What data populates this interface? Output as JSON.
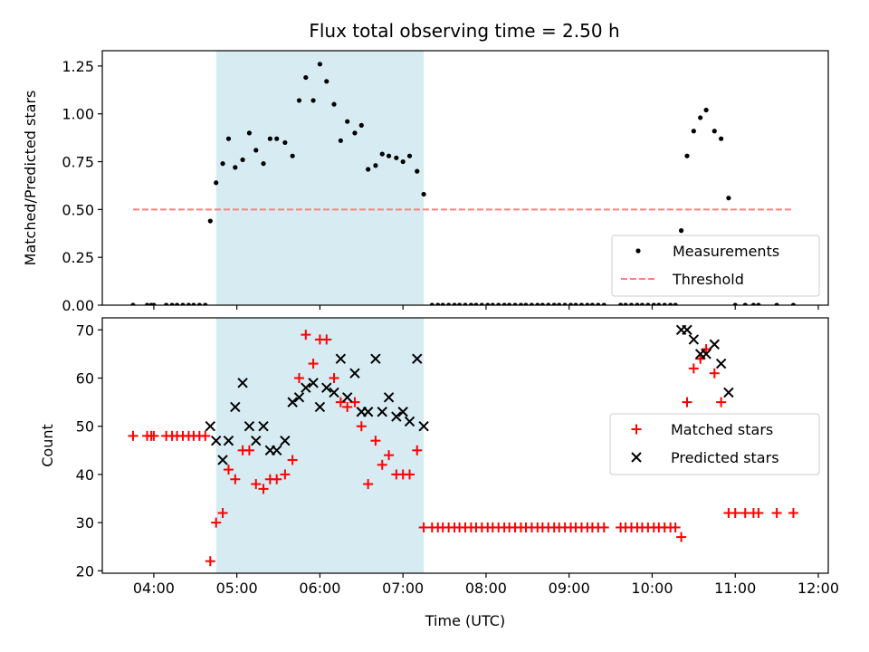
{
  "title": "Flux total observing time = 2.50 h",
  "colors": {
    "measurement": "#000000",
    "threshold": "#ff7f7f",
    "matched": "#ff0000",
    "predicted": "#000000",
    "span_fill": "#add8e6"
  },
  "chart_data": [
    {
      "type": "scatter",
      "title": "Flux total observing time = 2.50 h",
      "xlabel": "",
      "ylabel": "Matched/Predicted stars",
      "x_unit": "hours UTC",
      "xlim": [
        3.38,
        12.12
      ],
      "ylim": [
        0,
        1.33
      ],
      "yticks": [
        0,
        0.25,
        0.5,
        0.75,
        1.0,
        1.25
      ],
      "ytick_labels": [
        "0.00",
        "0.25",
        "0.50",
        "0.75",
        "1.00",
        "1.25"
      ],
      "xticks": [
        4,
        5,
        6,
        7,
        8,
        9,
        10,
        11,
        12
      ],
      "shaded_span": [
        4.75,
        7.25
      ],
      "legend": {
        "placement": "lower-right",
        "entries": [
          "Measurements",
          "Threshold"
        ]
      },
      "threshold": {
        "name": "Threshold",
        "x": [
          3.75,
          11.7
        ],
        "y": 0.5
      },
      "series": [
        {
          "name": "Measurements",
          "marker": "dot",
          "points": [
            [
              3.75,
              0
            ],
            [
              3.92,
              0
            ],
            [
              3.97,
              0
            ],
            [
              4.0,
              0
            ],
            [
              4.15,
              0
            ],
            [
              4.22,
              0
            ],
            [
              4.28,
              0
            ],
            [
              4.35,
              0
            ],
            [
              4.42,
              0
            ],
            [
              4.48,
              0
            ],
            [
              4.55,
              0
            ],
            [
              4.62,
              0
            ],
            [
              4.68,
              0.44
            ],
            [
              4.75,
              0.64
            ],
            [
              4.83,
              0.74
            ],
            [
              4.9,
              0.87
            ],
            [
              4.98,
              0.72
            ],
            [
              5.07,
              0.76
            ],
            [
              5.15,
              0.9
            ],
            [
              5.23,
              0.81
            ],
            [
              5.32,
              0.74
            ],
            [
              5.4,
              0.87
            ],
            [
              5.48,
              0.87
            ],
            [
              5.58,
              0.85
            ],
            [
              5.67,
              0.78
            ],
            [
              5.75,
              1.07
            ],
            [
              5.83,
              1.19
            ],
            [
              5.92,
              1.07
            ],
            [
              6.0,
              1.26
            ],
            [
              6.08,
              1.17
            ],
            [
              6.17,
              1.05
            ],
            [
              6.25,
              0.86
            ],
            [
              6.33,
              0.96
            ],
            [
              6.42,
              0.9
            ],
            [
              6.5,
              0.94
            ],
            [
              6.58,
              0.71
            ],
            [
              6.67,
              0.73
            ],
            [
              6.75,
              0.79
            ],
            [
              6.83,
              0.78
            ],
            [
              6.92,
              0.77
            ],
            [
              7.0,
              0.75
            ],
            [
              7.08,
              0.78
            ],
            [
              7.17,
              0.7
            ],
            [
              7.25,
              0.58
            ],
            [
              7.35,
              0
            ],
            [
              7.42,
              0
            ],
            [
              7.48,
              0
            ],
            [
              7.55,
              0
            ],
            [
              7.62,
              0
            ],
            [
              7.68,
              0
            ],
            [
              7.75,
              0
            ],
            [
              7.82,
              0
            ],
            [
              7.88,
              0
            ],
            [
              7.95,
              0
            ],
            [
              8.02,
              0
            ],
            [
              8.08,
              0
            ],
            [
              8.15,
              0
            ],
            [
              8.22,
              0
            ],
            [
              8.28,
              0
            ],
            [
              8.35,
              0
            ],
            [
              8.42,
              0
            ],
            [
              8.48,
              0
            ],
            [
              8.55,
              0
            ],
            [
              8.62,
              0
            ],
            [
              8.68,
              0
            ],
            [
              8.75,
              0
            ],
            [
              8.82,
              0
            ],
            [
              8.88,
              0
            ],
            [
              8.95,
              0
            ],
            [
              9.02,
              0
            ],
            [
              9.08,
              0
            ],
            [
              9.15,
              0
            ],
            [
              9.22,
              0
            ],
            [
              9.28,
              0
            ],
            [
              9.35,
              0
            ],
            [
              9.42,
              0
            ],
            [
              9.62,
              0
            ],
            [
              9.68,
              0
            ],
            [
              9.75,
              0
            ],
            [
              9.82,
              0
            ],
            [
              9.88,
              0
            ],
            [
              9.95,
              0
            ],
            [
              10.02,
              0
            ],
            [
              10.08,
              0
            ],
            [
              10.15,
              0
            ],
            [
              10.22,
              0
            ],
            [
              10.28,
              0
            ],
            [
              10.35,
              0.39
            ],
            [
              10.42,
              0.78
            ],
            [
              10.5,
              0.91
            ],
            [
              10.58,
              0.98
            ],
            [
              10.65,
              1.02
            ],
            [
              10.75,
              0.91
            ],
            [
              10.83,
              0.87
            ],
            [
              10.92,
              0.56
            ],
            [
              11.0,
              0
            ],
            [
              11.12,
              0
            ],
            [
              11.22,
              0
            ],
            [
              11.28,
              0
            ],
            [
              11.5,
              0
            ],
            [
              11.7,
              0
            ]
          ]
        }
      ]
    },
    {
      "type": "scatter",
      "xlabel": "Time (UTC)",
      "ylabel": "Count",
      "x_unit": "hours UTC",
      "xlim": [
        3.38,
        12.12
      ],
      "ylim": [
        19.5,
        72.5
      ],
      "yticks": [
        20,
        30,
        40,
        50,
        60,
        70
      ],
      "ytick_labels": [
        "20",
        "30",
        "40",
        "50",
        "60",
        "70"
      ],
      "xticks": [
        4,
        5,
        6,
        7,
        8,
        9,
        10,
        11,
        12
      ],
      "xtick_labels": [
        "04:00",
        "05:00",
        "06:00",
        "07:00",
        "08:00",
        "09:00",
        "10:00",
        "11:00",
        "12:00"
      ],
      "shaded_span": [
        4.75,
        7.25
      ],
      "legend": {
        "placement": "center-right",
        "entries": [
          "Matched stars",
          "Predicted stars"
        ]
      },
      "series": [
        {
          "name": "Matched stars",
          "marker": "plus",
          "points": [
            [
              3.75,
              48
            ],
            [
              3.92,
              48
            ],
            [
              3.97,
              48
            ],
            [
              4.0,
              48
            ],
            [
              4.15,
              48
            ],
            [
              4.22,
              48
            ],
            [
              4.28,
              48
            ],
            [
              4.35,
              48
            ],
            [
              4.42,
              48
            ],
            [
              4.48,
              48
            ],
            [
              4.55,
              48
            ],
            [
              4.62,
              48
            ],
            [
              4.68,
              22
            ],
            [
              4.75,
              30
            ],
            [
              4.83,
              32
            ],
            [
              4.9,
              41
            ],
            [
              4.98,
              39
            ],
            [
              5.07,
              45
            ],
            [
              5.15,
              45
            ],
            [
              5.23,
              38
            ],
            [
              5.32,
              37
            ],
            [
              5.4,
              39
            ],
            [
              5.48,
              39
            ],
            [
              5.58,
              40
            ],
            [
              5.67,
              43
            ],
            [
              5.75,
              60
            ],
            [
              5.83,
              69
            ],
            [
              5.92,
              63
            ],
            [
              6.0,
              68
            ],
            [
              6.08,
              68
            ],
            [
              6.17,
              60
            ],
            [
              6.25,
              55
            ],
            [
              6.33,
              54
            ],
            [
              6.42,
              55
            ],
            [
              6.5,
              50
            ],
            [
              6.58,
              38
            ],
            [
              6.67,
              47
            ],
            [
              6.75,
              42
            ],
            [
              6.83,
              44
            ],
            [
              6.92,
              40
            ],
            [
              7.0,
              40
            ],
            [
              7.08,
              40
            ],
            [
              7.17,
              45
            ],
            [
              7.25,
              29
            ],
            [
              7.35,
              29
            ],
            [
              7.42,
              29
            ],
            [
              7.48,
              29
            ],
            [
              7.55,
              29
            ],
            [
              7.62,
              29
            ],
            [
              7.68,
              29
            ],
            [
              7.75,
              29
            ],
            [
              7.82,
              29
            ],
            [
              7.88,
              29
            ],
            [
              7.95,
              29
            ],
            [
              8.02,
              29
            ],
            [
              8.08,
              29
            ],
            [
              8.15,
              29
            ],
            [
              8.22,
              29
            ],
            [
              8.28,
              29
            ],
            [
              8.35,
              29
            ],
            [
              8.42,
              29
            ],
            [
              8.48,
              29
            ],
            [
              8.55,
              29
            ],
            [
              8.62,
              29
            ],
            [
              8.68,
              29
            ],
            [
              8.75,
              29
            ],
            [
              8.82,
              29
            ],
            [
              8.88,
              29
            ],
            [
              8.95,
              29
            ],
            [
              9.02,
              29
            ],
            [
              9.08,
              29
            ],
            [
              9.15,
              29
            ],
            [
              9.22,
              29
            ],
            [
              9.28,
              29
            ],
            [
              9.35,
              29
            ],
            [
              9.42,
              29
            ],
            [
              9.62,
              29
            ],
            [
              9.68,
              29
            ],
            [
              9.75,
              29
            ],
            [
              9.82,
              29
            ],
            [
              9.88,
              29
            ],
            [
              9.95,
              29
            ],
            [
              10.02,
              29
            ],
            [
              10.08,
              29
            ],
            [
              10.15,
              29
            ],
            [
              10.22,
              29
            ],
            [
              10.28,
              29
            ],
            [
              10.35,
              27
            ],
            [
              10.42,
              55
            ],
            [
              10.5,
              62
            ],
            [
              10.58,
              64
            ],
            [
              10.65,
              66
            ],
            [
              10.75,
              61
            ],
            [
              10.83,
              55
            ],
            [
              10.92,
              32
            ],
            [
              11.0,
              32
            ],
            [
              11.12,
              32
            ],
            [
              11.22,
              32
            ],
            [
              11.28,
              32
            ],
            [
              11.5,
              32
            ],
            [
              11.7,
              32
            ]
          ]
        },
        {
          "name": "Predicted stars",
          "marker": "x",
          "points": [
            [
              4.68,
              50
            ],
            [
              4.75,
              47
            ],
            [
              4.83,
              43
            ],
            [
              4.9,
              47
            ],
            [
              4.98,
              54
            ],
            [
              5.07,
              59
            ],
            [
              5.15,
              50
            ],
            [
              5.23,
              47
            ],
            [
              5.32,
              50
            ],
            [
              5.4,
              45
            ],
            [
              5.48,
              45
            ],
            [
              5.58,
              47
            ],
            [
              5.67,
              55
            ],
            [
              5.75,
              56
            ],
            [
              5.83,
              58
            ],
            [
              5.92,
              59
            ],
            [
              6.0,
              54
            ],
            [
              6.08,
              58
            ],
            [
              6.17,
              57
            ],
            [
              6.25,
              64
            ],
            [
              6.33,
              56
            ],
            [
              6.42,
              61
            ],
            [
              6.5,
              53
            ],
            [
              6.58,
              53
            ],
            [
              6.67,
              64
            ],
            [
              6.75,
              53
            ],
            [
              6.83,
              56
            ],
            [
              6.92,
              52
            ],
            [
              7.0,
              53
            ],
            [
              7.08,
              51
            ],
            [
              7.17,
              64
            ],
            [
              7.25,
              50
            ],
            [
              10.35,
              70
            ],
            [
              10.42,
              70
            ],
            [
              10.5,
              68
            ],
            [
              10.58,
              65
            ],
            [
              10.65,
              65
            ],
            [
              10.75,
              67
            ],
            [
              10.83,
              63
            ],
            [
              10.92,
              57
            ]
          ]
        }
      ]
    }
  ]
}
